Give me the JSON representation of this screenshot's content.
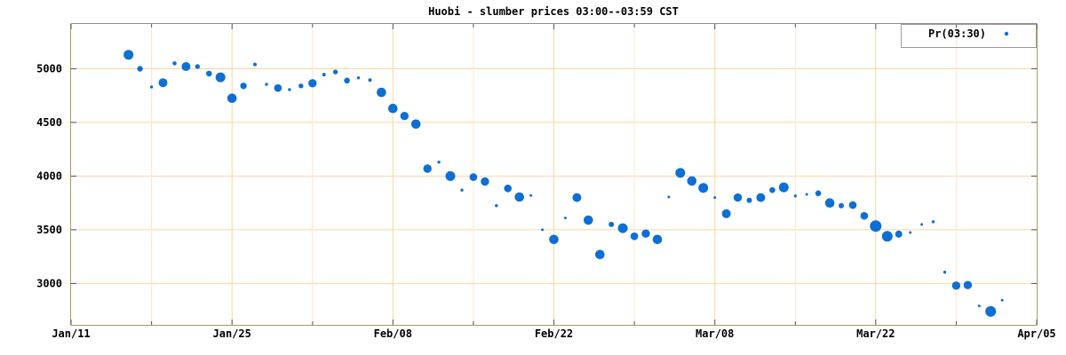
{
  "title": "Huobi - slumber prices 03:00--03:59 CST",
  "legend": {
    "label": "Pr(03:30)"
  },
  "colors": {
    "point": "#0d6fd4",
    "grid_major": "#f8d6a2",
    "grid_minor": "#fce7c8",
    "border_top": "#8f8f8f",
    "border_tan": "#a79a62",
    "text": "#000000"
  },
  "chart_data": {
    "type": "scatter",
    "title": "Huobi - slumber prices 03:00--03:59 CST",
    "series_label": "Pr(03:30)",
    "xlabel": "",
    "ylabel": "",
    "legend_position": "top-right",
    "grid": true,
    "x_axis": {
      "tick_labels": [
        "Jan/11",
        "Jan/25",
        "Feb/08",
        "Feb/22",
        "Mar/08",
        "Mar/22",
        "Apr/05"
      ],
      "tick_days": [
        0,
        14,
        28,
        42,
        56,
        70,
        84
      ],
      "minor_tick_days": [
        7,
        21,
        35,
        49,
        63,
        77
      ],
      "range_days": [
        0,
        84
      ]
    },
    "y_axis": {
      "ticks": [
        3000,
        3500,
        4000,
        4500,
        5000
      ],
      "range": [
        2615,
        5417
      ]
    },
    "points": [
      {
        "m": 1,
        "d": 16,
        "price": 5130,
        "r": 5.5
      },
      {
        "m": 1,
        "d": 17,
        "price": 5000,
        "r": 3.2
      },
      {
        "m": 1,
        "d": 18,
        "price": 4830,
        "r": 1.7
      },
      {
        "m": 1,
        "d": 19,
        "price": 4870,
        "r": 5.0
      },
      {
        "m": 1,
        "d": 20,
        "price": 5050,
        "r": 2.3
      },
      {
        "m": 1,
        "d": 21,
        "price": 5020,
        "r": 5.0
      },
      {
        "m": 1,
        "d": 22,
        "price": 5020,
        "r": 2.7
      },
      {
        "m": 1,
        "d": 23,
        "price": 4955,
        "r": 3.3
      },
      {
        "m": 1,
        "d": 24,
        "price": 4920,
        "r": 5.5
      },
      {
        "m": 1,
        "d": 25,
        "price": 4725,
        "r": 5.3
      },
      {
        "m": 1,
        "d": 26,
        "price": 4840,
        "r": 3.7
      },
      {
        "m": 1,
        "d": 27,
        "price": 5040,
        "r": 2.0
      },
      {
        "m": 1,
        "d": 28,
        "price": 4855,
        "r": 1.7
      },
      {
        "m": 1,
        "d": 29,
        "price": 4820,
        "r": 4.3
      },
      {
        "m": 1,
        "d": 30,
        "price": 4805,
        "r": 1.7
      },
      {
        "m": 1,
        "d": 31,
        "price": 4840,
        "r": 2.7
      },
      {
        "m": 2,
        "d": 1,
        "price": 4865,
        "r": 4.7
      },
      {
        "m": 2,
        "d": 2,
        "price": 4945,
        "r": 2.0
      },
      {
        "m": 2,
        "d": 3,
        "price": 4970,
        "r": 2.7
      },
      {
        "m": 2,
        "d": 4,
        "price": 4890,
        "r": 3.3
      },
      {
        "m": 2,
        "d": 5,
        "price": 4915,
        "r": 1.7
      },
      {
        "m": 2,
        "d": 6,
        "price": 4895,
        "r": 2.0
      },
      {
        "m": 2,
        "d": 7,
        "price": 4780,
        "r": 5.3
      },
      {
        "m": 2,
        "d": 8,
        "price": 4630,
        "r": 5.3
      },
      {
        "m": 2,
        "d": 9,
        "price": 4560,
        "r": 4.7
      },
      {
        "m": 2,
        "d": 10,
        "price": 4485,
        "r": 5.3
      },
      {
        "m": 2,
        "d": 11,
        "price": 4070,
        "r": 4.7
      },
      {
        "m": 2,
        "d": 12,
        "price": 4130,
        "r": 1.7
      },
      {
        "m": 2,
        "d": 13,
        "price": 4000,
        "r": 5.5
      },
      {
        "m": 2,
        "d": 14,
        "price": 3870,
        "r": 1.7
      },
      {
        "m": 2,
        "d": 15,
        "price": 3990,
        "r": 4.3
      },
      {
        "m": 2,
        "d": 16,
        "price": 3950,
        "r": 4.7
      },
      {
        "m": 2,
        "d": 17,
        "price": 3725,
        "r": 1.7
      },
      {
        "m": 2,
        "d": 18,
        "price": 3885,
        "r": 4.3
      },
      {
        "m": 2,
        "d": 19,
        "price": 3805,
        "r": 5.3
      },
      {
        "m": 2,
        "d": 20,
        "price": 3820,
        "r": 1.5
      },
      {
        "m": 2,
        "d": 21,
        "price": 3500,
        "r": 1.5
      },
      {
        "m": 2,
        "d": 22,
        "price": 3410,
        "r": 5.3
      },
      {
        "m": 2,
        "d": 23,
        "price": 3610,
        "r": 1.5
      },
      {
        "m": 2,
        "d": 24,
        "price": 3800,
        "r": 5.0
      },
      {
        "m": 2,
        "d": 25,
        "price": 3590,
        "r": 5.3
      },
      {
        "m": 2,
        "d": 26,
        "price": 3270,
        "r": 5.3
      },
      {
        "m": 2,
        "d": 27,
        "price": 3550,
        "r": 3.0
      },
      {
        "m": 2,
        "d": 28,
        "price": 3515,
        "r": 5.5
      },
      {
        "m": 3,
        "d": 1,
        "price": 3440,
        "r": 4.3
      },
      {
        "m": 3,
        "d": 2,
        "price": 3465,
        "r": 4.7
      },
      {
        "m": 3,
        "d": 3,
        "price": 3410,
        "r": 5.3
      },
      {
        "m": 3,
        "d": 4,
        "price": 3805,
        "r": 1.5
      },
      {
        "m": 3,
        "d": 5,
        "price": 4030,
        "r": 5.5
      },
      {
        "m": 3,
        "d": 6,
        "price": 3955,
        "r": 5.3
      },
      {
        "m": 3,
        "d": 7,
        "price": 3890,
        "r": 5.5
      },
      {
        "m": 3,
        "d": 8,
        "price": 3800,
        "r": 1.5
      },
      {
        "m": 3,
        "d": 9,
        "price": 3650,
        "r": 5.0
      },
      {
        "m": 3,
        "d": 10,
        "price": 3800,
        "r": 4.7
      },
      {
        "m": 3,
        "d": 11,
        "price": 3775,
        "r": 3.0
      },
      {
        "m": 3,
        "d": 12,
        "price": 3800,
        "r": 5.0
      },
      {
        "m": 3,
        "d": 13,
        "price": 3870,
        "r": 3.3
      },
      {
        "m": 3,
        "d": 14,
        "price": 3895,
        "r": 5.5
      },
      {
        "m": 3,
        "d": 15,
        "price": 3815,
        "r": 1.7
      },
      {
        "m": 3,
        "d": 16,
        "price": 3830,
        "r": 1.5
      },
      {
        "m": 3,
        "d": 17,
        "price": 3840,
        "r": 3.3
      },
      {
        "m": 3,
        "d": 18,
        "price": 3750,
        "r": 5.3
      },
      {
        "m": 3,
        "d": 19,
        "price": 3725,
        "r": 3.0
      },
      {
        "m": 3,
        "d": 20,
        "price": 3730,
        "r": 4.3
      },
      {
        "m": 3,
        "d": 21,
        "price": 3630,
        "r": 4.3
      },
      {
        "m": 3,
        "d": 22,
        "price": 3535,
        "r": 6.5
      },
      {
        "m": 3,
        "d": 23,
        "price": 3440,
        "r": 6.0
      },
      {
        "m": 3,
        "d": 24,
        "price": 3460,
        "r": 4.0
      },
      {
        "m": 3,
        "d": 25,
        "price": 3475,
        "r": 1.5
      },
      {
        "m": 3,
        "d": 26,
        "price": 3550,
        "r": 1.5
      },
      {
        "m": 3,
        "d": 27,
        "price": 3575,
        "r": 1.7
      },
      {
        "m": 3,
        "d": 28,
        "price": 3105,
        "r": 1.7
      },
      {
        "m": 3,
        "d": 29,
        "price": 2980,
        "r": 4.7
      },
      {
        "m": 3,
        "d": 30,
        "price": 2985,
        "r": 4.7
      },
      {
        "m": 3,
        "d": 31,
        "price": 2790,
        "r": 1.5
      },
      {
        "m": 4,
        "d": 1,
        "price": 2740,
        "r": 6.0
      },
      {
        "m": 4,
        "d": 2,
        "price": 2845,
        "r": 1.5
      }
    ]
  }
}
